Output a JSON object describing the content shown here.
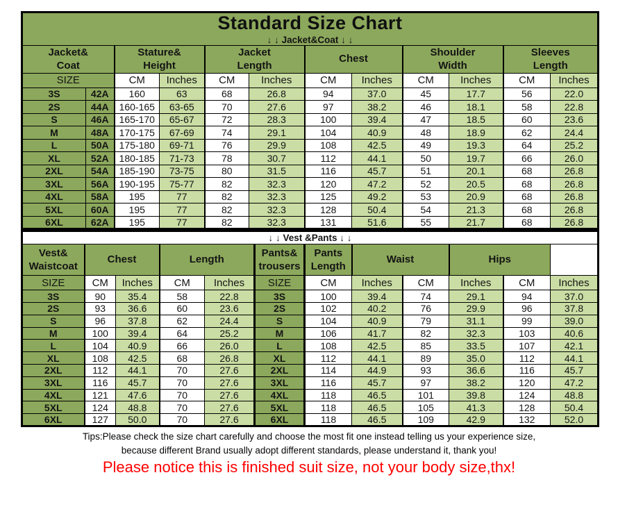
{
  "title": "Standard Size Chart",
  "colors": {
    "header_green": "#8CA85C",
    "cell_light_green": "#CADDA4",
    "cm_cell_white": "#FFFFFF",
    "border_black": "#000000",
    "notice_red": "#FF0000"
  },
  "chart_data": [
    {
      "type": "table",
      "section_label": "↓ ↓  Jacket&Coat ↓ ↓",
      "column_groups": [
        "Jacket&\nCoat",
        "Stature&\nHeight",
        "Jacket\nLength",
        "Chest",
        "Shoulder\nWidth",
        "Sleeves\nLength"
      ],
      "unit_row": [
        "SIZE",
        "CM",
        "Inches",
        "CM",
        "Inches",
        "CM",
        "Inches",
        "CM",
        "Inches",
        "CM",
        "Inches"
      ],
      "rows": [
        [
          "3S",
          "42A",
          "160",
          "63",
          "68",
          "26.8",
          "94",
          "37.0",
          "45",
          "17.7",
          "56",
          "22.0"
        ],
        [
          "2S",
          "44A",
          "160-165",
          "63-65",
          "70",
          "27.6",
          "97",
          "38.2",
          "46",
          "18.1",
          "58",
          "22.8"
        ],
        [
          "S",
          "46A",
          "165-170",
          "65-67",
          "72",
          "28.3",
          "100",
          "39.4",
          "47",
          "18.5",
          "60",
          "23.6"
        ],
        [
          "M",
          "48A",
          "170-175",
          "67-69",
          "74",
          "29.1",
          "104",
          "40.9",
          "48",
          "18.9",
          "62",
          "24.4"
        ],
        [
          "L",
          "50A",
          "175-180",
          "69-71",
          "76",
          "29.9",
          "108",
          "42.5",
          "49",
          "19.3",
          "64",
          "25.2"
        ],
        [
          "XL",
          "52A",
          "180-185",
          "71-73",
          "78",
          "30.7",
          "112",
          "44.1",
          "50",
          "19.7",
          "66",
          "26.0"
        ],
        [
          "2XL",
          "54A",
          "185-190",
          "73-75",
          "80",
          "31.5",
          "116",
          "45.7",
          "51",
          "20.1",
          "68",
          "26.8"
        ],
        [
          "3XL",
          "56A",
          "190-195",
          "75-77",
          "82",
          "32.3",
          "120",
          "47.2",
          "52",
          "20.5",
          "68",
          "26.8"
        ],
        [
          "4XL",
          "58A",
          "195",
          "77",
          "82",
          "32.3",
          "125",
          "49.2",
          "53",
          "20.9",
          "68",
          "26.8"
        ],
        [
          "5XL",
          "60A",
          "195",
          "77",
          "82",
          "32.3",
          "128",
          "50.4",
          "54",
          "21.3",
          "68",
          "26.8"
        ],
        [
          "6XL",
          "62A",
          "195",
          "77",
          "82",
          "32.3",
          "131",
          "51.6",
          "55",
          "21.7",
          "68",
          "26.8"
        ]
      ]
    },
    {
      "type": "table",
      "section_label": "↓ ↓  Vest &Pants ↓ ↓",
      "column_groups": [
        "Vest&\nWaistcoat",
        "Chest",
        "Length",
        "Pants&\ntrousers",
        "Pants\nLength",
        "Waist",
        "Hips"
      ],
      "unit_row": [
        "SIZE",
        "CM",
        "Inches",
        "CM",
        "Inches",
        "SIZE",
        "CM",
        "Inches",
        "CM",
        "Inches",
        "CM",
        "Inches"
      ],
      "rows": [
        [
          "3S",
          "90",
          "35.4",
          "58",
          "22.8",
          "3S",
          "100",
          "39.4",
          "74",
          "29.1",
          "94",
          "37.0"
        ],
        [
          "2S",
          "93",
          "36.6",
          "60",
          "23.6",
          "2S",
          "102",
          "40.2",
          "76",
          "29.9",
          "96",
          "37.8"
        ],
        [
          "S",
          "96",
          "37.8",
          "62",
          "24.4",
          "S",
          "104",
          "40.9",
          "79",
          "31.1",
          "99",
          "39.0"
        ],
        [
          "M",
          "100",
          "39.4",
          "64",
          "25.2",
          "M",
          "106",
          "41.7",
          "82",
          "32.3",
          "103",
          "40.6"
        ],
        [
          "L",
          "104",
          "40.9",
          "66",
          "26.0",
          "L",
          "108",
          "42.5",
          "85",
          "33.5",
          "107",
          "42.1"
        ],
        [
          "XL",
          "108",
          "42.5",
          "68",
          "26.8",
          "XL",
          "112",
          "44.1",
          "89",
          "35.0",
          "112",
          "44.1"
        ],
        [
          "2XL",
          "112",
          "44.1",
          "70",
          "27.6",
          "2XL",
          "114",
          "44.9",
          "93",
          "36.6",
          "116",
          "45.7"
        ],
        [
          "3XL",
          "116",
          "45.7",
          "70",
          "27.6",
          "3XL",
          "116",
          "45.7",
          "97",
          "38.2",
          "120",
          "47.2"
        ],
        [
          "4XL",
          "121",
          "47.6",
          "70",
          "27.6",
          "4XL",
          "118",
          "46.5",
          "101",
          "39.8",
          "124",
          "48.8"
        ],
        [
          "5XL",
          "124",
          "48.8",
          "70",
          "27.6",
          "5XL",
          "118",
          "46.5",
          "105",
          "41.3",
          "128",
          "50.4"
        ],
        [
          "6XL",
          "127",
          "50.0",
          "70",
          "27.6",
          "6XL",
          "118",
          "46.5",
          "109",
          "42.9",
          "132",
          "52.0"
        ]
      ]
    }
  ],
  "tips": {
    "line1": "Tips:Please check the size chart carefully and choose the most fit one instead telling us your experience size,",
    "line2": "because different Brand usually adopt different standards, please understand it, thank you!",
    "notice": "Please notice this is finished suit size, not your body size,thx!"
  }
}
